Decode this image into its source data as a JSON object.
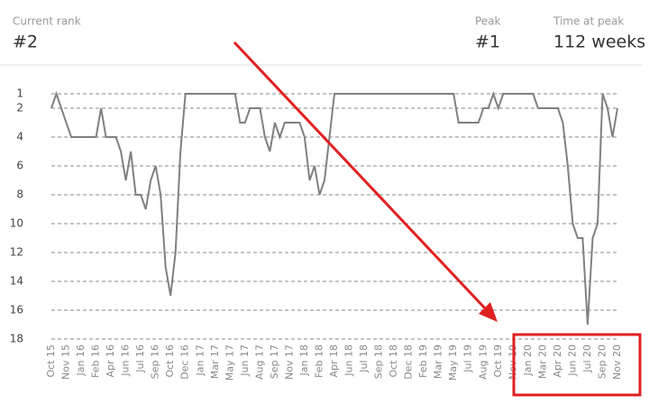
{
  "header": {
    "current_rank_label": "Current rank",
    "current_rank": "#2",
    "peak_label": "Peak",
    "peak": "#1",
    "time_at_peak_label": "Time at peak",
    "time_at_peak": "112 weeks"
  },
  "chart_data": {
    "type": "line",
    "categories": [
      "Oct 15",
      null,
      null,
      "Nov 15",
      null,
      null,
      "Jan 16",
      null,
      null,
      "Feb 16",
      null,
      null,
      "Apr 16",
      null,
      null,
      "Jun 16",
      null,
      null,
      "Jul 16",
      null,
      null,
      "Sep 16",
      null,
      null,
      "Oct 16",
      null,
      null,
      "Dec 16",
      null,
      null,
      "Jan 17",
      null,
      null,
      "Mar 17",
      null,
      null,
      "May 17",
      null,
      null,
      "Jun 17",
      null,
      null,
      "Aug 17",
      null,
      null,
      "Sep 17",
      null,
      null,
      "Nov 17",
      null,
      null,
      "Jan 18",
      null,
      null,
      "Feb 18",
      null,
      null,
      "Apr 18",
      null,
      null,
      "Jun 18",
      null,
      null,
      "Jul 18",
      null,
      null,
      "Sep 18",
      null,
      null,
      "Oct 18",
      null,
      null,
      "Dec 18",
      null,
      null,
      "Feb 19",
      null,
      null,
      "Mar 19",
      null,
      null,
      "May 19",
      null,
      null,
      "Jul 19",
      null,
      null,
      "Aug 19",
      null,
      null,
      "Oct 19",
      null,
      null,
      "Nov 19",
      null,
      null,
      "Jan 20",
      null,
      null,
      "Mar 20",
      null,
      null,
      "Apr 20",
      null,
      null,
      "Jun 20",
      null,
      null,
      "Jul 20",
      null,
      null,
      "Sep 20",
      null,
      null,
      "Nov 20"
    ],
    "values": [
      2,
      1,
      2,
      3,
      4,
      4,
      4,
      4,
      4,
      4,
      2,
      4,
      4,
      4,
      5,
      7,
      5,
      8,
      8,
      9,
      7,
      6,
      8,
      13,
      15,
      12,
      5,
      1,
      1,
      1,
      1,
      1,
      1,
      1,
      1,
      1,
      1,
      1,
      3,
      3,
      2,
      2,
      2,
      4,
      5,
      3,
      4,
      3,
      3,
      3,
      3,
      4,
      7,
      6,
      8,
      7,
      4,
      1,
      1,
      1,
      1,
      1,
      1,
      1,
      1,
      1,
      1,
      1,
      1,
      1,
      1,
      1,
      1,
      1,
      1,
      1,
      1,
      1,
      1,
      1,
      1,
      1,
      3,
      3,
      3,
      3,
      3,
      2,
      2,
      1,
      2,
      1,
      1,
      1,
      1,
      1,
      1,
      1,
      2,
      2,
      2,
      2,
      2,
      3,
      6,
      10,
      11,
      11,
      17,
      11,
      10,
      1,
      2,
      4,
      2
    ],
    "color": "#808080",
    "ylim": [
      1,
      18
    ],
    "y_inverted": true,
    "yticks": [
      1,
      2,
      4,
      6,
      8,
      10,
      12,
      14,
      16,
      18
    ],
    "grid": true
  }
}
